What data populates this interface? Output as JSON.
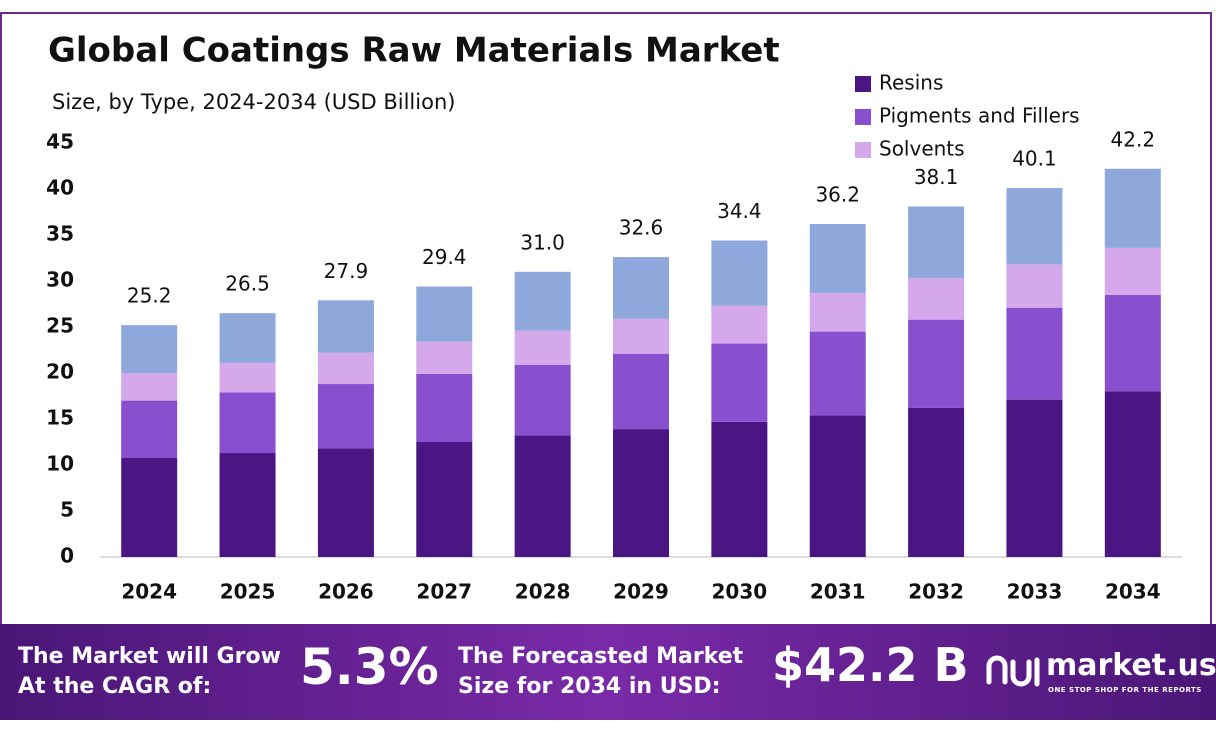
{
  "chart_data": {
    "type": "stacked_bar",
    "title": "Global Coatings Raw Materials Market",
    "subtitle": "Size, by Type, 2024-2034 (USD Billion)",
    "categories": [
      "2024",
      "2025",
      "2026",
      "2027",
      "2028",
      "2029",
      "2030",
      "2031",
      "2032",
      "2033",
      "2034"
    ],
    "series": [
      {
        "name": "Resins",
        "color": "#4b1583",
        "values": [
          10.8,
          11.3,
          11.8,
          12.5,
          13.2,
          13.9,
          14.7,
          15.4,
          16.2,
          17.1,
          18.0
        ]
      },
      {
        "name": "Pigments and Fillers",
        "color": "#8a4fcf",
        "values": [
          6.2,
          6.6,
          7.0,
          7.4,
          7.7,
          8.2,
          8.5,
          9.1,
          9.6,
          10.0,
          10.5
        ]
      },
      {
        "name": "Solvents",
        "color": "#d5a8ec",
        "values": [
          3.0,
          3.2,
          3.4,
          3.5,
          3.7,
          3.8,
          4.1,
          4.2,
          4.5,
          4.7,
          5.1
        ]
      },
      {
        "color": "#8fa8dc",
        "values": [
          5.2,
          5.4,
          5.7,
          6.0,
          6.4,
          6.7,
          7.1,
          7.5,
          7.8,
          8.3,
          8.6
        ]
      }
    ],
    "totals": [
      25.2,
      26.5,
      27.9,
      29.4,
      31.0,
      32.6,
      34.4,
      36.2,
      38.1,
      40.1,
      42.2
    ],
    "total_labels": [
      "25.2",
      "26.5",
      "27.9",
      "29.4",
      "31.0",
      "32.6",
      "34.4",
      "36.2",
      "38.1",
      "40.1",
      "42.2"
    ],
    "ylim": [
      0,
      45
    ],
    "yticks": [
      0,
      5,
      10,
      15,
      20,
      25,
      30,
      35,
      40,
      45
    ],
    "grid": false,
    "legend": "top-right"
  },
  "banner": {
    "grow_line1": "The Market will Grow",
    "grow_line2": "At the CAGR of:",
    "cagr": "5.3%",
    "forecast_line1": "The Forecasted Market",
    "forecast_line2": "Size for 2034 in USD:",
    "forecast_value": "$42.2 B",
    "brand": "market.us",
    "tagline": "ONE STOP SHOP FOR THE REPORTS"
  }
}
